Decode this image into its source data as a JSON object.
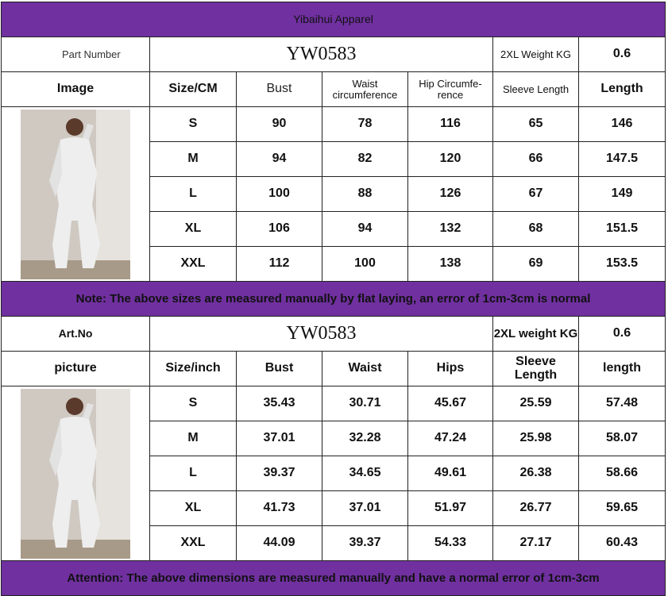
{
  "brand": "Yibaihui Apparel",
  "accent_color": "#7030a0",
  "cm_table": {
    "part_label": "Part Number",
    "part_value": "YW0583",
    "weight_label": "2XL Weight KG",
    "weight_value": "0.6",
    "headers": [
      "Image",
      "Size/CM",
      "Bust",
      "Waist circumference",
      "Hip Circumfe-rence",
      "Sleeve Length",
      "Length"
    ],
    "rows": [
      [
        "S",
        "90",
        "78",
        "116",
        "65",
        "146"
      ],
      [
        "M",
        "94",
        "82",
        "120",
        "66",
        "147.5"
      ],
      [
        "L",
        "100",
        "88",
        "126",
        "67",
        "149"
      ],
      [
        "XL",
        "106",
        "94",
        "132",
        "68",
        "151.5"
      ],
      [
        "XXL",
        "112",
        "100",
        "138",
        "69",
        "153.5"
      ]
    ],
    "note": "Note: The above sizes are measured manually by flat laying, an error of 1cm-3cm is normal"
  },
  "inch_table": {
    "part_label": "Art.No",
    "part_value": "YW0583",
    "weight_label": "2XL weight KG",
    "weight_value": "0.6",
    "headers": [
      "picture",
      "Size/inch",
      "Bust",
      "Waist",
      "Hips",
      "Sleeve Length",
      "length"
    ],
    "rows": [
      [
        "S",
        "35.43",
        "30.71",
        "45.67",
        "25.59",
        "57.48"
      ],
      [
        "M",
        "37.01",
        "32.28",
        "47.24",
        "25.98",
        "58.07"
      ],
      [
        "L",
        "39.37",
        "34.65",
        "49.61",
        "26.38",
        "58.66"
      ],
      [
        "XL",
        "41.73",
        "37.01",
        "51.97",
        "26.77",
        "59.65"
      ],
      [
        "XXL",
        "44.09",
        "39.37",
        "54.33",
        "27.17",
        "60.43"
      ]
    ],
    "note": "Attention: The above dimensions are measured manually and have a normal error of 1cm-3cm"
  }
}
